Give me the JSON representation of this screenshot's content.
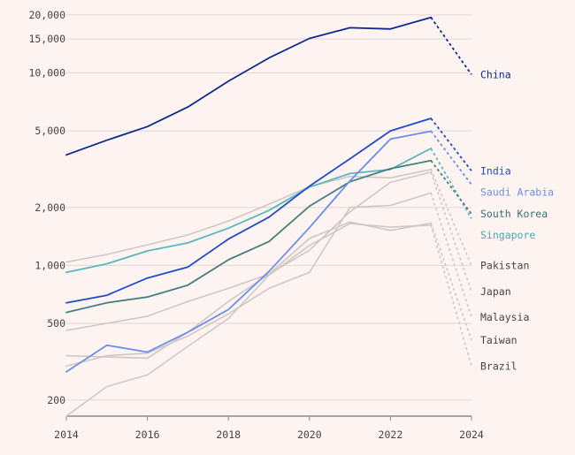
{
  "chart_data": {
    "type": "line",
    "y_scale": "log",
    "ylim": [
      165,
      21500
    ],
    "xlim": [
      2014,
      2024
    ],
    "x_ticks": [
      2014,
      2016,
      2018,
      2020,
      2022,
      2024
    ],
    "x_tick_labels": [
      "2014",
      "2016",
      "2018",
      "2020",
      "2022",
      "2024"
    ],
    "y_ticks": [
      200,
      500,
      1000,
      2000,
      5000,
      10000,
      15000,
      20000
    ],
    "y_tick_labels": [
      "200",
      "500",
      "1,000",
      "2,000",
      "5,000",
      "10,000",
      "15,000",
      "20,000"
    ],
    "grid": "horizontal",
    "projection": {
      "from": 2023,
      "to": 2024,
      "style": "dotted"
    },
    "x": [
      2014,
      2015,
      2016,
      2017,
      2018,
      2019,
      2020,
      2021,
      2022,
      2023
    ],
    "series": [
      {
        "name": "Brazil",
        "color": "#d0c6c4",
        "text_color": "#444444",
        "highlight": false,
        "values": [
          165,
          235,
          270,
          380,
          530,
          890,
          1270,
          1650,
          1580,
          1620
        ],
        "value_2024": 300
      },
      {
        "name": "Taiwan",
        "color": "#d0c6c4",
        "text_color": "#444444",
        "highlight": false,
        "values": [
          340,
          335,
          330,
          450,
          650,
          900,
          1380,
          1680,
          1520,
          1660
        ],
        "value_2024": 410
      },
      {
        "name": "Malaysia",
        "color": "#d0c6c4",
        "text_color": "#444444",
        "highlight": false,
        "values": [
          300,
          340,
          350,
          430,
          560,
          760,
          920,
          2000,
          2050,
          2380
        ],
        "value_2024": 540
      },
      {
        "name": "Japan",
        "color": "#d0c6c4",
        "text_color": "#444444",
        "highlight": false,
        "values": [
          460,
          500,
          545,
          650,
          760,
          900,
          1200,
          1900,
          2700,
          3050
        ],
        "value_2024": 730
      },
      {
        "name": "Pakistan",
        "color": "#d0c6c4",
        "text_color": "#444444",
        "highlight": false,
        "values": [
          1040,
          1140,
          1280,
          1440,
          1700,
          2080,
          2560,
          2900,
          2850,
          3150
        ],
        "value_2024": 1000
      },
      {
        "name": "Singapore",
        "color": "#5ab7bf",
        "text_color": "#4aa7af",
        "highlight": true,
        "values": [
          920,
          1020,
          1190,
          1310,
          1560,
          1930,
          2550,
          3000,
          3150,
          4050
        ],
        "value_2024": 1750
      },
      {
        "name": "South Korea",
        "color": "#467f82",
        "text_color": "#3a6f72",
        "highlight": true,
        "values": [
          570,
          640,
          685,
          790,
          1070,
          1330,
          2030,
          2720,
          3180,
          3500
        ],
        "value_2024": 1850
      },
      {
        "name": "Saudi Arabia",
        "color": "#6b8ee8",
        "text_color": "#6b8ee8",
        "highlight": true,
        "values": [
          280,
          385,
          355,
          450,
          590,
          930,
          1570,
          2750,
          4530,
          4980
        ],
        "value_2024": 2630
      },
      {
        "name": "India",
        "color": "#1f4cc6",
        "text_color": "#1f4cc6",
        "highlight": true,
        "values": [
          640,
          700,
          860,
          980,
          1370,
          1780,
          2580,
          3580,
          5000,
          5800
        ],
        "value_2024": 3100
      },
      {
        "name": "China",
        "color": "#0b2b8c",
        "text_color": "#0b2b8c",
        "highlight": true,
        "values": [
          3750,
          4470,
          5260,
          6650,
          9050,
          11950,
          15100,
          17150,
          16900,
          19400
        ],
        "value_2024": 9800
      }
    ]
  }
}
